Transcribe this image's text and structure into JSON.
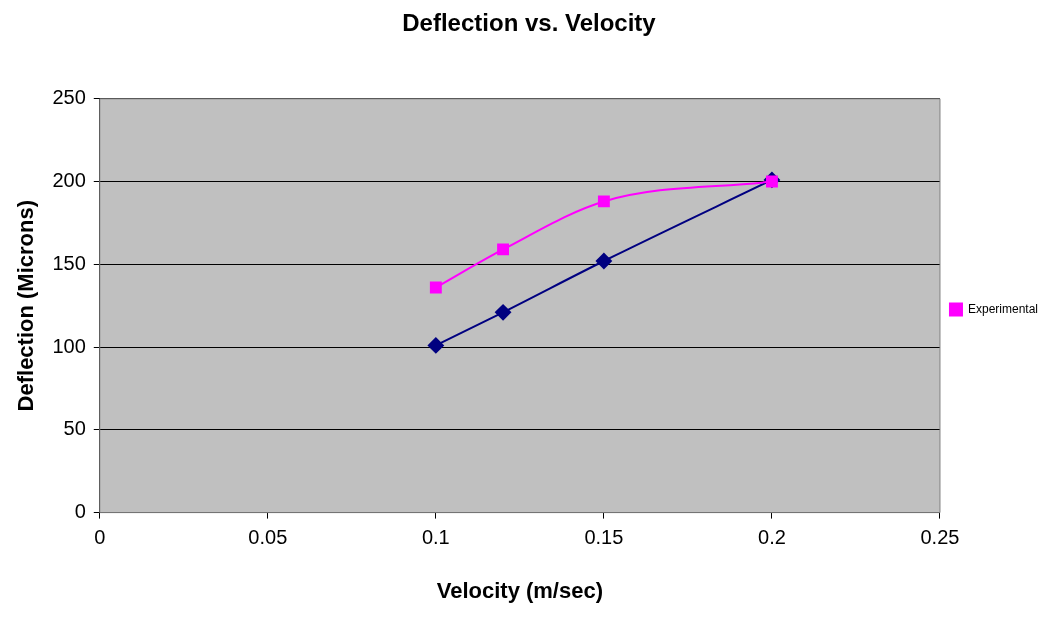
{
  "chart_data": {
    "type": "line",
    "title": "Deflection vs. Velocity",
    "xlabel": "Velocity (m/sec)",
    "ylabel": "Deflection (Microns)",
    "series": [
      {
        "color": "#000080",
        "marker": "diamond",
        "x": [
          0.1,
          0.12,
          0.15,
          0.2
        ],
        "values": [
          101,
          121,
          152,
          201
        ]
      },
      {
        "name": "Experimental",
        "color": "#ff00ff",
        "marker": "square",
        "x": [
          0.1,
          0.12,
          0.15,
          0.2
        ],
        "values": [
          136,
          159,
          188,
          200
        ]
      }
    ],
    "xlim": [
      0,
      0.25
    ],
    "xticks": [
      0,
      0.05,
      0.1,
      0.15,
      0.2,
      0.25
    ],
    "ylim": [
      0,
      250
    ],
    "yticks": [
      0,
      50,
      100,
      150,
      200,
      250
    ],
    "grid": "y",
    "legend": "right",
    "line_style": "solid"
  }
}
